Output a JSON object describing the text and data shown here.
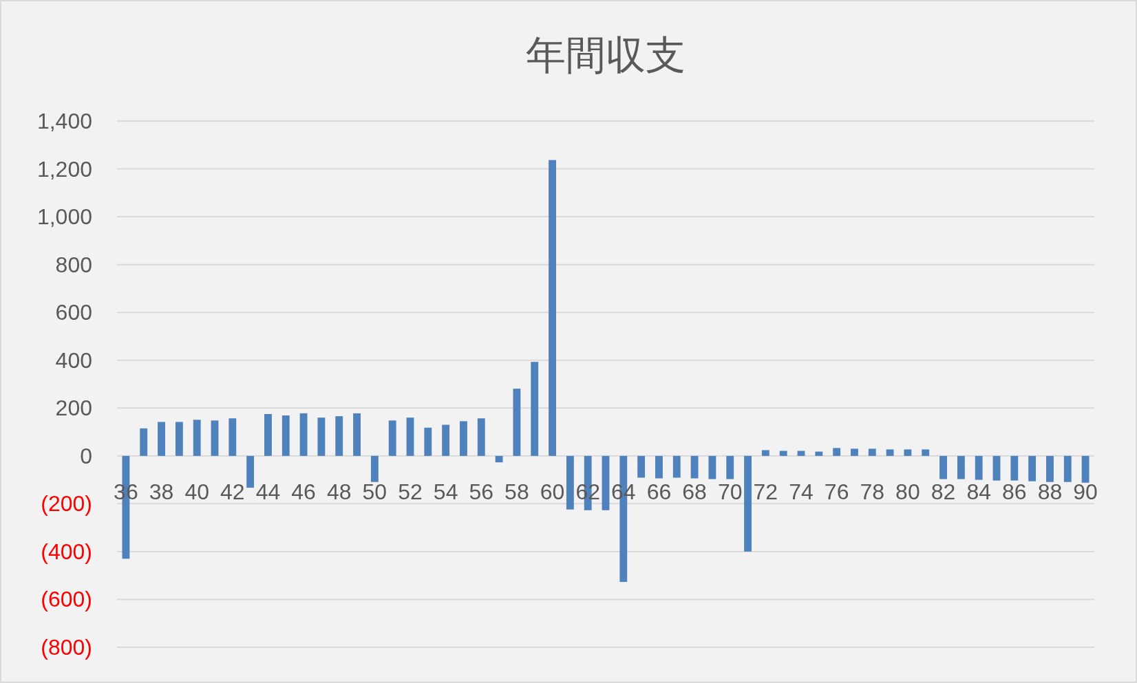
{
  "chart_data": {
    "type": "bar",
    "title": "年間収支",
    "categories": [
      "36",
      null,
      "38",
      null,
      "40",
      null,
      "42",
      null,
      "44",
      null,
      "46",
      null,
      "48",
      null,
      "50",
      null,
      "52",
      null,
      "54",
      null,
      "56",
      null,
      "58",
      null,
      "60",
      null,
      "62",
      null,
      "64",
      null,
      "66",
      null,
      "68",
      null,
      "70",
      null,
      "72",
      null,
      "74",
      null,
      "76",
      null,
      "78",
      null,
      "80",
      null,
      "82",
      null,
      "84",
      null,
      "86",
      null,
      "88",
      null,
      "90"
    ],
    "values": [
      -430,
      115,
      142,
      142,
      151,
      148,
      157,
      -133,
      175,
      169,
      178,
      160,
      166,
      178,
      -109,
      148,
      160,
      118,
      130,
      145,
      157,
      -27,
      281,
      393,
      1237,
      -224,
      -227,
      -227,
      -527,
      -91,
      -94,
      -91,
      -94,
      -97,
      -97,
      -400,
      24,
      21,
      21,
      18,
      33,
      30,
      30,
      27,
      27,
      27,
      -97,
      -97,
      -100,
      -103,
      -103,
      -106,
      -109,
      -109,
      -112
    ],
    "color": "#4f81bd",
    "ylim": [
      -800,
      1400
    ],
    "yticks": [
      {
        "value": -800,
        "label": "(800)"
      },
      {
        "value": -600,
        "label": "(600)"
      },
      {
        "value": -400,
        "label": "(400)"
      },
      {
        "value": -200,
        "label": "(200)"
      },
      0,
      {
        "value": 200,
        "label": "200"
      },
      {
        "value": 400,
        "label": "400"
      },
      {
        "value": 600,
        "label": "600"
      },
      {
        "value": 800,
        "label": "800"
      },
      {
        "value": 1000,
        "label": "1,000"
      },
      {
        "value": 1200,
        "label": "1,200"
      },
      {
        "value": 1400,
        "label": "1,400"
      }
    ],
    "grid": "y"
  }
}
